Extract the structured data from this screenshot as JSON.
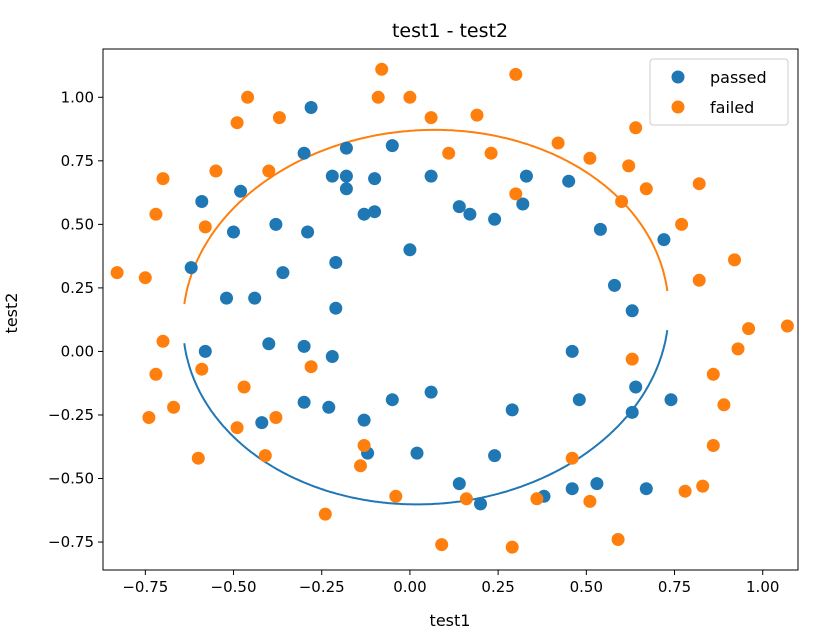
{
  "chart_data": {
    "type": "scatter",
    "title": "test1 - test2",
    "xlabel": "test1",
    "ylabel": "test2",
    "xlim": [
      -0.87,
      1.1
    ],
    "ylim": [
      -0.86,
      1.19
    ],
    "xticks": [
      -0.75,
      -0.5,
      -0.25,
      0.0,
      0.25,
      0.5,
      0.75,
      1.0
    ],
    "xtick_labels": [
      "−0.75",
      "−0.50",
      "−0.25",
      "0.00",
      "0.25",
      "0.50",
      "0.75",
      "1.00"
    ],
    "yticks": [
      -0.75,
      -0.5,
      -0.25,
      0.0,
      0.25,
      0.5,
      0.75,
      1.0
    ],
    "ytick_labels": [
      "−0.75",
      "−0.50",
      "−0.25",
      "0.00",
      "0.25",
      "0.50",
      "0.75",
      "1.00"
    ],
    "grid": false,
    "legend_position": "top-right",
    "series": [
      {
        "name": "passed",
        "color": "#1f77b4",
        "points": [
          [
            -0.28,
            0.96
          ],
          [
            -0.05,
            0.81
          ],
          [
            -0.18,
            0.8
          ],
          [
            -0.3,
            0.78
          ],
          [
            -0.22,
            0.69
          ],
          [
            -0.18,
            0.69
          ],
          [
            -0.1,
            0.68
          ],
          [
            0.06,
            0.69
          ],
          [
            0.33,
            0.69
          ],
          [
            0.45,
            0.67
          ],
          [
            -0.48,
            0.63
          ],
          [
            -0.18,
            0.64
          ],
          [
            -0.59,
            0.59
          ],
          [
            0.32,
            0.58
          ],
          [
            0.14,
            0.57
          ],
          [
            -0.13,
            0.54
          ],
          [
            -0.1,
            0.55
          ],
          [
            0.17,
            0.54
          ],
          [
            0.24,
            0.52
          ],
          [
            -0.38,
            0.5
          ],
          [
            -0.5,
            0.47
          ],
          [
            -0.29,
            0.47
          ],
          [
            0.54,
            0.48
          ],
          [
            0.72,
            0.44
          ],
          [
            0.0,
            0.4
          ],
          [
            -0.21,
            0.35
          ],
          [
            -0.36,
            0.31
          ],
          [
            -0.62,
            0.33
          ],
          [
            0.58,
            0.26
          ],
          [
            -0.52,
            0.21
          ],
          [
            -0.44,
            0.21
          ],
          [
            -0.21,
            0.17
          ],
          [
            0.63,
            0.16
          ],
          [
            -0.4,
            0.03
          ],
          [
            -0.3,
            0.02
          ],
          [
            -0.58,
            0.0
          ],
          [
            -0.22,
            -0.02
          ],
          [
            0.46,
            0.0
          ],
          [
            0.64,
            -0.14
          ],
          [
            0.74,
            -0.19
          ],
          [
            -0.3,
            -0.2
          ],
          [
            -0.23,
            -0.22
          ],
          [
            -0.05,
            -0.19
          ],
          [
            0.06,
            -0.16
          ],
          [
            0.48,
            -0.19
          ],
          [
            0.29,
            -0.23
          ],
          [
            0.63,
            -0.24
          ],
          [
            -0.13,
            -0.27
          ],
          [
            -0.42,
            -0.28
          ],
          [
            -0.12,
            -0.4
          ],
          [
            0.02,
            -0.4
          ],
          [
            0.24,
            -0.41
          ],
          [
            0.14,
            -0.52
          ],
          [
            0.46,
            -0.54
          ],
          [
            0.53,
            -0.52
          ],
          [
            0.67,
            -0.54
          ],
          [
            0.38,
            -0.57
          ],
          [
            0.2,
            -0.6
          ]
        ]
      },
      {
        "name": "failed",
        "color": "#ff7f0e",
        "points": [
          [
            -0.08,
            1.11
          ],
          [
            0.3,
            1.09
          ],
          [
            -0.46,
            1.0
          ],
          [
            -0.09,
            1.0
          ],
          [
            0.0,
            1.0
          ],
          [
            -0.49,
            0.9
          ],
          [
            -0.37,
            0.92
          ],
          [
            0.06,
            0.92
          ],
          [
            0.19,
            0.93
          ],
          [
            0.64,
            0.88
          ],
          [
            0.42,
            0.82
          ],
          [
            0.11,
            0.78
          ],
          [
            0.23,
            0.78
          ],
          [
            0.51,
            0.76
          ],
          [
            0.62,
            0.73
          ],
          [
            -0.55,
            0.71
          ],
          [
            -0.4,
            0.71
          ],
          [
            -0.7,
            0.68
          ],
          [
            0.67,
            0.64
          ],
          [
            0.82,
            0.66
          ],
          [
            -0.72,
            0.54
          ],
          [
            0.3,
            0.62
          ],
          [
            0.6,
            0.59
          ],
          [
            0.77,
            0.5
          ],
          [
            -0.58,
            0.49
          ],
          [
            -0.83,
            0.31
          ],
          [
            -0.75,
            0.29
          ],
          [
            0.92,
            0.36
          ],
          [
            0.82,
            0.28
          ],
          [
            0.96,
            0.09
          ],
          [
            1.07,
            0.1
          ],
          [
            -0.7,
            0.04
          ],
          [
            0.93,
            0.01
          ],
          [
            -0.72,
            -0.09
          ],
          [
            -0.59,
            -0.07
          ],
          [
            0.63,
            -0.03
          ],
          [
            0.86,
            -0.09
          ],
          [
            -0.28,
            -0.06
          ],
          [
            -0.47,
            -0.14
          ],
          [
            -0.67,
            -0.22
          ],
          [
            0.89,
            -0.21
          ],
          [
            -0.74,
            -0.26
          ],
          [
            -0.38,
            -0.26
          ],
          [
            -0.49,
            -0.3
          ],
          [
            -0.6,
            -0.42
          ],
          [
            -0.41,
            -0.41
          ],
          [
            -0.13,
            -0.37
          ],
          [
            -0.14,
            -0.45
          ],
          [
            0.46,
            -0.42
          ],
          [
            0.86,
            -0.37
          ],
          [
            0.83,
            -0.53
          ],
          [
            0.78,
            -0.55
          ],
          [
            -0.04,
            -0.57
          ],
          [
            0.16,
            -0.58
          ],
          [
            0.36,
            -0.58
          ],
          [
            0.51,
            -0.59
          ],
          [
            -0.24,
            -0.64
          ],
          [
            0.09,
            -0.76
          ],
          [
            0.29,
            -0.77
          ],
          [
            0.59,
            -0.74
          ]
        ]
      }
    ],
    "boundary": {
      "type": "ellipse",
      "center": [
        0.045,
        0.135
      ],
      "semi_axes": [
        0.685,
        0.74
      ],
      "rotation_deg": -14,
      "segments": [
        {
          "series": "passed",
          "color": "#1f77b4",
          "x_range": [
            -0.64,
            0.73
          ],
          "side": "lower"
        },
        {
          "series": "failed",
          "color": "#ff7f0e",
          "x_range": [
            -0.64,
            0.73
          ],
          "side": "upper"
        }
      ]
    }
  }
}
